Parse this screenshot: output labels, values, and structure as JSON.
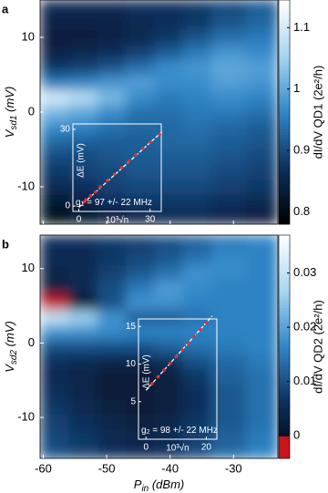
{
  "chart_data": [
    {
      "type": "heatmap",
      "panel_label": "a",
      "xbins": [
        -60.5,
        -56,
        -51.5,
        -47,
        -42.5,
        -38,
        -33.5,
        -28,
        -23
      ],
      "ybins": [
        -15,
        -13,
        -11,
        -9,
        -7,
        -5,
        -3,
        -1,
        1,
        3,
        5,
        7,
        9,
        11,
        13,
        15
      ],
      "z": [
        [
          0.8,
          0.82,
          0.84,
          0.85,
          0.86,
          0.86,
          0.85,
          0.84
        ],
        [
          0.83,
          0.85,
          0.87,
          0.88,
          0.88,
          0.88,
          0.87,
          0.86
        ],
        [
          0.86,
          0.87,
          0.89,
          0.9,
          0.9,
          0.9,
          0.89,
          0.88
        ],
        [
          0.88,
          0.89,
          0.9,
          0.91,
          0.91,
          0.91,
          0.9,
          0.89
        ],
        [
          0.9,
          0.9,
          0.91,
          0.92,
          0.92,
          0.92,
          0.91,
          0.9
        ],
        [
          0.93,
          0.92,
          0.92,
          0.92,
          0.93,
          0.93,
          0.92,
          0.91
        ],
        [
          0.97,
          0.96,
          0.94,
          0.93,
          0.93,
          0.94,
          0.93,
          0.92
        ],
        [
          1.02,
          1.0,
          0.97,
          0.94,
          0.94,
          0.95,
          0.95,
          0.94
        ],
        [
          1.1,
          1.07,
          1.02,
          0.97,
          0.95,
          0.96,
          0.97,
          0.96
        ],
        [
          0.95,
          0.96,
          0.98,
          0.99,
          0.97,
          0.97,
          0.99,
          0.98
        ],
        [
          0.88,
          0.89,
          0.91,
          0.94,
          0.97,
          0.98,
          1.0,
          0.99
        ],
        [
          0.85,
          0.86,
          0.87,
          0.89,
          0.92,
          0.95,
          0.98,
          0.97
        ],
        [
          0.84,
          0.84,
          0.85,
          0.86,
          0.88,
          0.91,
          0.94,
          0.95
        ],
        [
          0.85,
          0.85,
          0.85,
          0.86,
          0.87,
          0.88,
          0.91,
          0.93
        ],
        [
          0.86,
          0.86,
          0.86,
          0.87,
          0.87,
          0.88,
          0.9,
          0.92
        ]
      ],
      "xlim": [
        -60.5,
        -23
      ],
      "ylim": [
        -15,
        15
      ],
      "xticks": [
        -60,
        -50,
        -40,
        -30
      ],
      "yticks": [
        -10,
        0,
        10
      ],
      "ylabel": [
        "V",
        "sd1",
        " (mV)"
      ],
      "colormap": [
        "#000000",
        "#0b2f5c",
        "#2f86c8",
        "#a5d6f2",
        "#ffffff"
      ],
      "colorbar": {
        "label": "dI/dV QD1 (2e²/h)",
        "lim": [
          0.78,
          1.145
        ],
        "ticks": [
          0.8,
          0.9,
          1,
          1.1
        ]
      },
      "inset": {
        "xlim": [
          -2.5,
          34.7
        ],
        "ylim": [
          -2.1,
          32.1
        ],
        "xticks": [
          0,
          30
        ],
        "yticks": [
          0,
          30
        ],
        "xlabel": "10³√n",
        "ylabel": "ΔE (mV)",
        "note": [
          "g",
          "1",
          " = 97 +/- 22 MHz"
        ],
        "x": [
          2,
          3,
          5,
          7,
          9,
          12,
          15,
          18,
          21,
          24,
          27,
          30,
          34
        ],
        "y": [
          1.5,
          2.5,
          4,
          5.5,
          7.5,
          10,
          12.5,
          15,
          17.5,
          20,
          22.5,
          25,
          28
        ],
        "fit": {
          "x": [
            0,
            35
          ],
          "y": [
            -0.5,
            29
          ]
        },
        "color": "#e8302a",
        "fit_color": "#ffffff"
      }
    },
    {
      "type": "heatmap",
      "panel_label": "b",
      "xbins": [
        -60.5,
        -56,
        -51.5,
        -47,
        -42.5,
        -38,
        -33.5,
        -28,
        -23
      ],
      "ybins": [
        -15.5,
        -13.5,
        -11.5,
        -9.5,
        -7.5,
        -5.5,
        -3.5,
        -1.5,
        0.5,
        2.5,
        4.5,
        6.5,
        8.5,
        10.5,
        12.5,
        14.5
      ],
      "z": [
        [
          0.01,
          0.008,
          0.006,
          0.005,
          0.006,
          0.009,
          0.013,
          0.016
        ],
        [
          0.009,
          0.007,
          0.005,
          0.004,
          0.005,
          0.008,
          0.012,
          0.015
        ],
        [
          0.008,
          0.006,
          0.004,
          0.003,
          0.004,
          0.007,
          0.011,
          0.014
        ],
        [
          0.007,
          0.005,
          0.003,
          0.002,
          0.003,
          0.006,
          0.011,
          0.014
        ],
        [
          0.006,
          0.004,
          0.002,
          0.002,
          0.003,
          0.006,
          0.011,
          0.014
        ],
        [
          0.005,
          0.004,
          0.002,
          0.002,
          0.003,
          0.007,
          0.012,
          0.014
        ],
        [
          0.006,
          0.005,
          0.004,
          0.004,
          0.006,
          0.01,
          0.013,
          0.015
        ],
        [
          0.01,
          0.01,
          0.01,
          0.01,
          0.012,
          0.014,
          0.015,
          0.016
        ],
        [
          0.018,
          0.018,
          0.017,
          0.016,
          0.016,
          0.016,
          0.016,
          0.016
        ],
        [
          0.03,
          0.026,
          0.018,
          0.012,
          0.012,
          0.014,
          0.016,
          0.016
        ],
        [
          -0.004,
          0.001,
          0.01,
          0.018,
          0.018,
          0.016,
          0.016,
          0.016
        ],
        [
          0.003,
          0.005,
          0.01,
          0.015,
          0.019,
          0.017,
          0.016,
          0.016
        ],
        [
          0.004,
          0.005,
          0.008,
          0.011,
          0.014,
          0.018,
          0.017,
          0.016
        ],
        [
          0.005,
          0.005,
          0.007,
          0.009,
          0.011,
          0.014,
          0.017,
          0.016
        ],
        [
          0.006,
          0.006,
          0.007,
          0.008,
          0.01,
          0.012,
          0.015,
          0.016
        ]
      ],
      "xlim": [
        -60.5,
        -23
      ],
      "ylim": [
        -15.5,
        14.5
      ],
      "xticks": [
        -60,
        -50,
        -40,
        -30
      ],
      "yticks": [
        -10,
        0,
        10
      ],
      "xlabel": [
        "P",
        "in",
        " (dBm)"
      ],
      "ylabel": [
        "V",
        "sd2",
        " (mV)"
      ],
      "colormap": [
        "#000000",
        "#0b2f5c",
        "#2f86c8",
        "#a5d6f2",
        "#ffffff"
      ],
      "negative_color": "#c8141a",
      "colorbar": {
        "label": "dI/dV QD2 (2e²/h)",
        "lim": [
          -0.0042,
          0.037
        ],
        "ticks": [
          0,
          0.01,
          0.02,
          0.03
        ]
      },
      "inset": {
        "xlim": [
          -2.5,
          23.5
        ],
        "ylim": [
          0,
          16
        ],
        "xticks": [
          0,
          20
        ],
        "yticks": [
          5,
          10,
          15
        ],
        "xlabel": "10³√n",
        "ylabel": "ΔE (mV)",
        "note": [
          "g",
          "2",
          " = 98 +/- 22 MHz"
        ],
        "x": [
          2,
          4,
          6,
          8,
          10,
          12,
          14,
          16,
          18,
          20
        ],
        "y": [
          7.4,
          8.3,
          9.2,
          10.1,
          11,
          11.9,
          12.8,
          13.7,
          14.6,
          15.5
        ],
        "fit": {
          "x": [
            0,
            22
          ],
          "y": [
            6.5,
            16.4
          ]
        },
        "color": "#e8302a",
        "fit_color": "#ffffff"
      }
    }
  ]
}
